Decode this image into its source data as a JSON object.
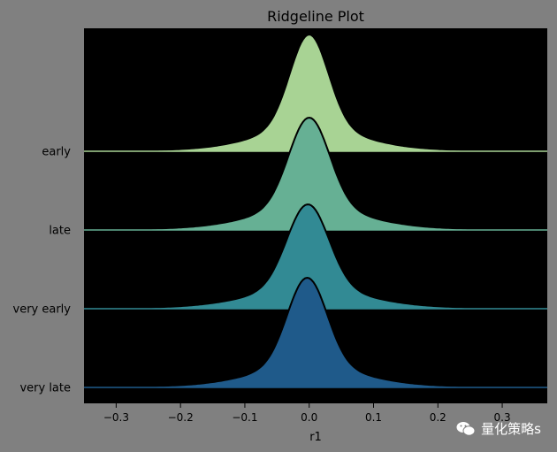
{
  "chart_data": {
    "type": "area",
    "title": "Ridgeline Plot",
    "xlabel": "r1",
    "ylabel": "",
    "xlim": [
      -0.35,
      0.37
    ],
    "xticks": [
      -0.3,
      -0.2,
      -0.1,
      0.0,
      0.1,
      0.2,
      0.3
    ],
    "xtick_labels": [
      "−0.3",
      "−0.2",
      "−0.1",
      "0.0",
      "0.1",
      "0.2",
      "0.3"
    ],
    "grid": false,
    "background": "#000000",
    "series": [
      {
        "name": "early",
        "color": "#a8d394",
        "peak_x": 0.0,
        "peak_height": 1.0,
        "std": 0.035
      },
      {
        "name": "late",
        "color": "#66b094",
        "peak_x": 0.0,
        "peak_height": 1.0,
        "std": 0.037
      },
      {
        "name": "very early",
        "color": "#328a94",
        "peak_x": -0.002,
        "peak_height": 1.0,
        "std": 0.038
      },
      {
        "name": "very late",
        "color": "#1f5a8a",
        "peak_x": -0.003,
        "peak_height": 1.0,
        "std": 0.036
      }
    ]
  },
  "watermark": {
    "text": "量化策略s",
    "icon": "wechat-icon"
  }
}
